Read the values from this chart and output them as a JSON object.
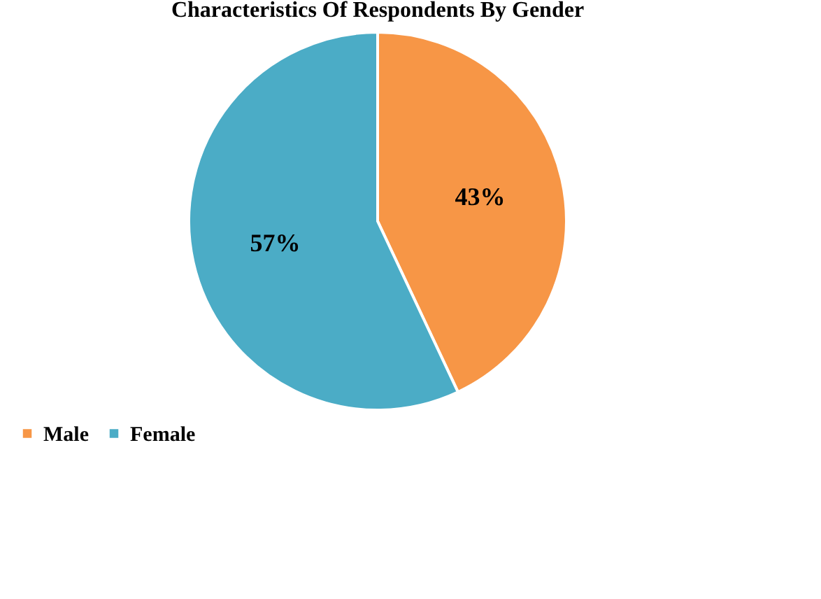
{
  "chart_data": {
    "type": "pie",
    "title": "Characteristics Of Respondents By Gender",
    "categories": [
      "Male",
      "Female"
    ],
    "values": [
      43,
      57
    ],
    "colors": [
      "#f79646",
      "#4bacc6"
    ],
    "value_labels": [
      "43%",
      "57%"
    ],
    "legend": "bottom"
  }
}
